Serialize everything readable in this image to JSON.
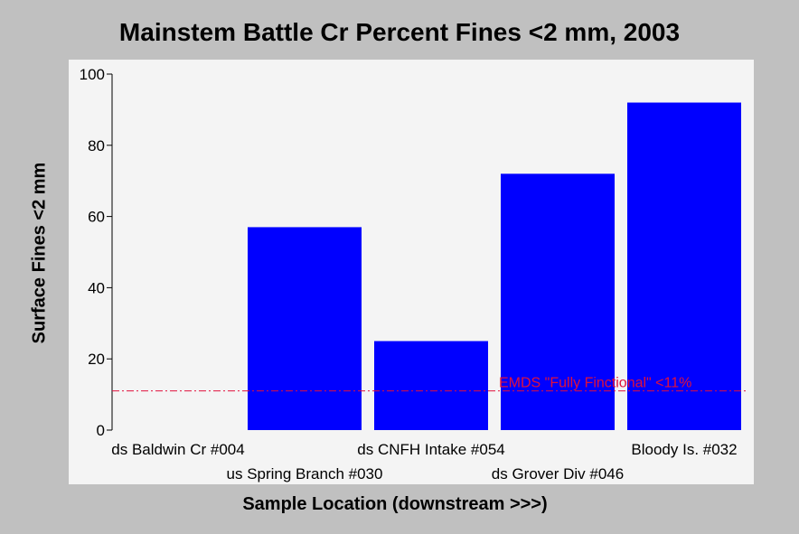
{
  "chart_data": {
    "type": "bar",
    "title": "Mainstem Battle Cr Percent Fines <2 mm, 2003",
    "xlabel": "Sample Location (downstream >>>)",
    "ylabel": "Surface Fines <2 mm",
    "categories": [
      "ds Baldwin Cr #004",
      "us Spring Branch #030",
      "ds CNFH Intake #054",
      "ds Grover Div #046",
      "Bloody Is. #032"
    ],
    "values": [
      0,
      57,
      25,
      72,
      92
    ],
    "ylim": [
      0,
      100
    ],
    "yticks": [
      0,
      20,
      40,
      60,
      80,
      100
    ],
    "grid": false,
    "reference_line": {
      "value": 11,
      "label": "EMDS \"Fully Finctional\" <11%",
      "color": "#e0103c"
    },
    "colors": {
      "bar": "#0000ff",
      "background": "#c0c0c0",
      "plot_area": "#f4f4f4"
    }
  }
}
